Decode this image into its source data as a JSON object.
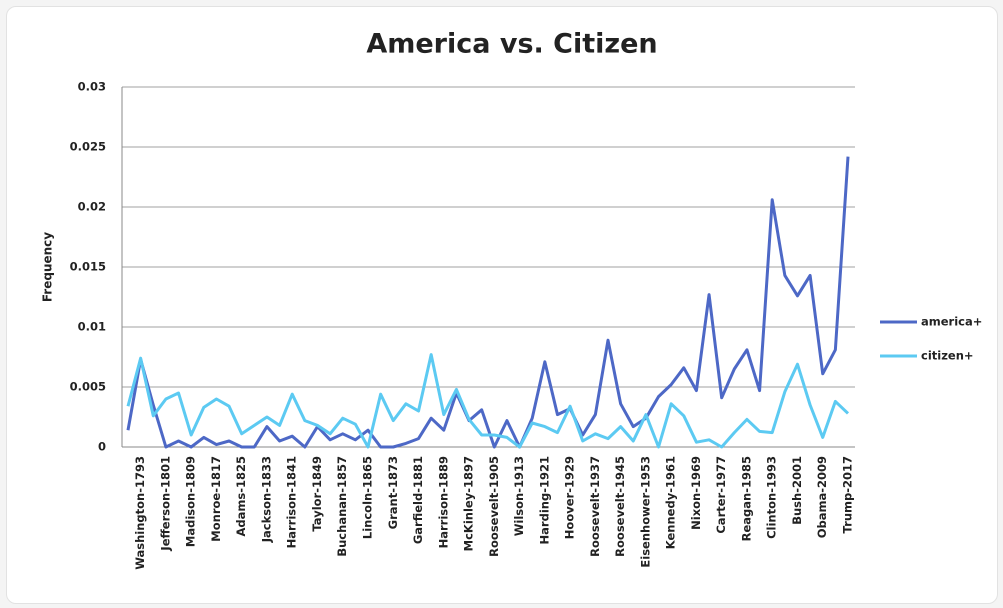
{
  "chart_data": {
    "type": "line",
    "title": "America vs. Citizen",
    "y_label": "Frequency",
    "categories": [
      null,
      "Washington-1793",
      null,
      "Jefferson-1801",
      null,
      "Madison-1809",
      null,
      "Monroe-1817",
      null,
      "Adams-1825",
      null,
      "Jackson-1833",
      null,
      "Harrison-1841",
      null,
      "Taylor-1849",
      null,
      "Buchanan-1857",
      null,
      "Lincoln-1865",
      null,
      "Grant-1873",
      null,
      "Garfield-1881",
      null,
      "Harrison-1889",
      null,
      "McKinley-1897",
      null,
      "Roosevelt-1905",
      null,
      "Wilson-1913",
      null,
      "Harding-1921",
      null,
      "Hoover-1929",
      null,
      "Roosevelt-1937",
      null,
      "Roosevelt-1945",
      null,
      "Eisenhower-1953",
      null,
      "Kennedy-1961",
      null,
      "Nixon-1969",
      null,
      "Carter-1977",
      null,
      "Reagan-1985",
      null,
      "Clinton-1993",
      null,
      "Bush-2001",
      null,
      "Obama-2009",
      null,
      "Trump-2017"
    ],
    "series": [
      {
        "name": "america+",
        "color": "#4d68c6",
        "values": [
          0.0014,
          0.0073,
          0.0035,
          0.0,
          0.0005,
          0.0,
          0.0008,
          0.0002,
          0.0005,
          0.0,
          0.0,
          0.0017,
          0.0005,
          0.0009,
          0.0,
          0.0017,
          0.0006,
          0.0011,
          0.0006,
          0.0014,
          0.0,
          0.0,
          0.0003,
          0.0007,
          0.0024,
          0.0014,
          0.0045,
          0.0022,
          0.0031,
          0.0,
          0.0022,
          0.0,
          0.0024,
          0.0071,
          0.0027,
          0.0032,
          0.001,
          0.0027,
          0.0089,
          0.0036,
          0.0017,
          0.0024,
          0.0042,
          0.0052,
          0.0066,
          0.0047,
          0.0127,
          0.0041,
          0.0065,
          0.0081,
          0.0047,
          0.0206,
          0.0143,
          0.0126,
          0.0143,
          0.0061,
          0.0081,
          0.0242
        ]
      },
      {
        "name": "citizen+",
        "color": "#5ccaf2",
        "values": [
          0.0034,
          0.0074,
          0.0026,
          0.004,
          0.0045,
          0.001,
          0.0033,
          0.004,
          0.0034,
          0.0011,
          0.0018,
          0.0025,
          0.0018,
          0.0044,
          0.0022,
          0.0018,
          0.0011,
          0.0024,
          0.0019,
          0.0,
          0.0044,
          0.0022,
          0.0036,
          0.003,
          0.0077,
          0.0027,
          0.0048,
          0.0023,
          0.001,
          0.001,
          0.0008,
          0.0,
          0.002,
          0.0017,
          0.0012,
          0.0034,
          0.0005,
          0.0011,
          0.0007,
          0.0017,
          0.0005,
          0.0027,
          0.0,
          0.0036,
          0.0026,
          0.0004,
          0.0006,
          0.0,
          0.0012,
          0.0023,
          0.0013,
          0.0012,
          0.0046,
          0.0069,
          0.0035,
          0.0008,
          0.0038,
          0.0028
        ]
      }
    ],
    "ylim": [
      0,
      0.03
    ],
    "yticks": [
      0,
      0.005,
      0.01,
      0.015,
      0.02,
      0.025,
      0.03
    ],
    "grid": true,
    "legend": "right"
  }
}
